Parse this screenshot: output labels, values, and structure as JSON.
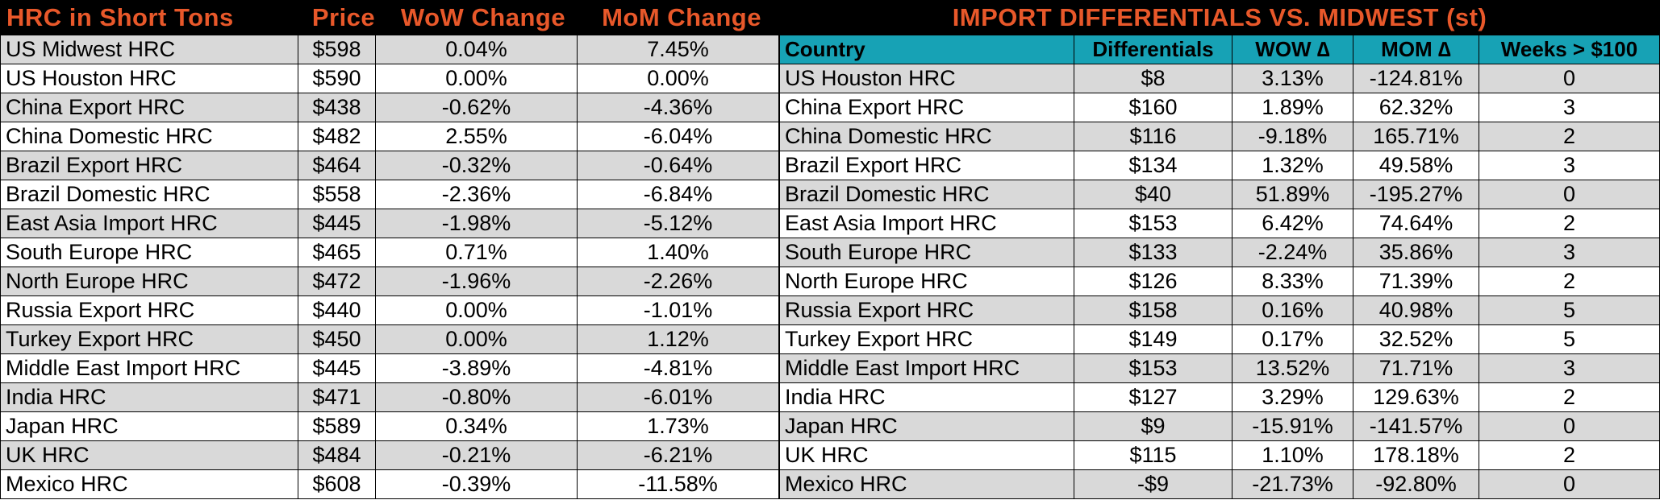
{
  "left": {
    "headers": [
      "HRC in Short Tons",
      "Price",
      "WoW Change",
      "MoM Change"
    ],
    "rows": [
      [
        "US Midwest HRC",
        "$598",
        "0.04%",
        "7.45%"
      ],
      [
        "US Houston HRC",
        "$590",
        "0.00%",
        "0.00%"
      ],
      [
        "China Export HRC",
        "$438",
        "-0.62%",
        "-4.36%"
      ],
      [
        "China Domestic HRC",
        "$482",
        "2.55%",
        "-6.04%"
      ],
      [
        "Brazil Export HRC",
        "$464",
        "-0.32%",
        "-0.64%"
      ],
      [
        "Brazil Domestic HRC",
        "$558",
        "-2.36%",
        "-6.84%"
      ],
      [
        "East Asia Import HRC",
        "$445",
        "-1.98%",
        "-5.12%"
      ],
      [
        "South Europe HRC",
        "$465",
        "0.71%",
        "1.40%"
      ],
      [
        "North Europe HRC",
        "$472",
        "-1.96%",
        "-2.26%"
      ],
      [
        "Russia Export HRC",
        "$440",
        "0.00%",
        "-1.01%"
      ],
      [
        "Turkey Export HRC",
        "$450",
        "0.00%",
        "1.12%"
      ],
      [
        "Middle East Import HRC",
        "$445",
        "-3.89%",
        "-4.81%"
      ],
      [
        "India HRC",
        "$471",
        "-0.80%",
        "-6.01%"
      ],
      [
        "Japan HRC",
        "$589",
        "0.34%",
        "1.73%"
      ],
      [
        "UK HRC",
        "$484",
        "-0.21%",
        "-6.21%"
      ],
      [
        "Mexico HRC",
        "$608",
        "-0.39%",
        "-11.58%"
      ]
    ]
  },
  "right": {
    "title": "IMPORT DIFFERENTIALS VS. MIDWEST (st)",
    "headers": [
      "Country",
      "Differentials",
      "WOW ∆",
      "MOM ∆",
      "Weeks > $100"
    ],
    "rows": [
      [
        "US Houston HRC",
        "$8",
        "3.13%",
        "-124.81%",
        "0"
      ],
      [
        "China Export HRC",
        "$160",
        "1.89%",
        "62.32%",
        "3"
      ],
      [
        "China Domestic HRC",
        "$116",
        "-9.18%",
        "165.71%",
        "2"
      ],
      [
        "Brazil Export HRC",
        "$134",
        "1.32%",
        "49.58%",
        "3"
      ],
      [
        "Brazil Domestic HRC",
        "$40",
        "51.89%",
        "-195.27%",
        "0"
      ],
      [
        "East Asia Import HRC",
        "$153",
        "6.42%",
        "74.64%",
        "2"
      ],
      [
        "South Europe HRC",
        "$133",
        "-2.24%",
        "35.86%",
        "3"
      ],
      [
        "North Europe HRC",
        "$126",
        "8.33%",
        "71.39%",
        "2"
      ],
      [
        "Russia Export HRC",
        "$158",
        "0.16%",
        "40.98%",
        "5"
      ],
      [
        "Turkey Export HRC",
        "$149",
        "0.17%",
        "32.52%",
        "5"
      ],
      [
        "Middle East Import HRC",
        "$153",
        "13.52%",
        "71.71%",
        "3"
      ],
      [
        "India HRC",
        "$127",
        "3.29%",
        "129.63%",
        "2"
      ],
      [
        "Japan HRC",
        "$9",
        "-15.91%",
        "-141.57%",
        "0"
      ],
      [
        "UK HRC",
        "$115",
        "1.10%",
        "178.18%",
        "2"
      ],
      [
        "Mexico HRC",
        "-$9",
        "-21.73%",
        "-92.80%",
        "0"
      ]
    ]
  },
  "colors": {
    "title_background": "#000000",
    "title_text": "#e8582a",
    "header_background": "#17a2b5",
    "shaded_row": "#d9d9d9"
  }
}
